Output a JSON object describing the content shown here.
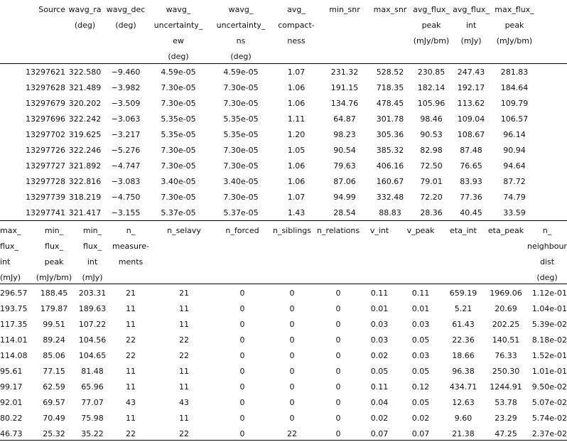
{
  "table1": {
    "headers": [
      [
        "Source"
      ],
      [
        "wavg_ra",
        "(deg)"
      ],
      [
        "wavg_dec",
        "(deg)"
      ],
      [
        "wavg_",
        "uncertainty_",
        "ew",
        "(deg)"
      ],
      [
        "wavg_",
        "uncertainty_",
        "ns",
        "(deg)"
      ],
      [
        "avg_",
        "compact-",
        "ness"
      ],
      [
        "min_snr"
      ],
      [
        "max_snr"
      ],
      [
        "avg_flux_",
        "peak",
        "(mJy/bm)"
      ],
      [
        "avg_flux_",
        "int",
        "(mJy)"
      ],
      [
        "max_flux_",
        "peak",
        "(mJy/bm)"
      ]
    ],
    "rows": [
      [
        "13297621",
        "322.580",
        "−9.460",
        "4.59e-05",
        "4.59e-05",
        "1.07",
        "231.32",
        "528.52",
        "230.85",
        "247.43",
        "281.83"
      ],
      [
        "13297628",
        "321.489",
        "−3.982",
        "7.30e-05",
        "7.30e-05",
        "1.06",
        "191.15",
        "718.35",
        "182.14",
        "192.17",
        "184.64"
      ],
      [
        "13297679",
        "320.202",
        "−3.509",
        "7.30e-05",
        "7.30e-05",
        "1.06",
        "134.76",
        "478.45",
        "105.96",
        "113.62",
        "109.79"
      ],
      [
        "13297696",
        "322.242",
        "−3.063",
        "5.35e-05",
        "5.35e-05",
        "1.11",
        "64.87",
        "301.78",
        "98.46",
        "109.04",
        "106.57"
      ],
      [
        "13297702",
        "319.625",
        "−3.217",
        "5.35e-05",
        "5.35e-05",
        "1.20",
        "98.23",
        "305.36",
        "90.53",
        "108.67",
        "96.14"
      ],
      [
        "13297726",
        "322.246",
        "−5.276",
        "7.30e-05",
        "7.30e-05",
        "1.05",
        "90.54",
        "385.32",
        "82.98",
        "87.48",
        "90.94"
      ],
      [
        "13297727",
        "321.892",
        "−4.747",
        "7.30e-05",
        "7.30e-05",
        "1.06",
        "79.63",
        "406.16",
        "72.50",
        "76.65",
        "94.64"
      ],
      [
        "13297728",
        "322.816",
        "−3.083",
        "3.40e-05",
        "3.40e-05",
        "1.06",
        "87.06",
        "160.67",
        "79.01",
        "83.93",
        "87.72"
      ],
      [
        "13297739",
        "318.219",
        "−4.750",
        "7.30e-05",
        "7.30e-05",
        "1.07",
        "94.99",
        "332.48",
        "72.20",
        "77.36",
        "74.79"
      ],
      [
        "13297741",
        "321.417",
        "−3.155",
        "5.37e-05",
        "5.37e-05",
        "1.43",
        "28.54",
        "88.83",
        "28.36",
        "40.45",
        "33.59"
      ]
    ]
  },
  "table2": {
    "headers": [
      [
        "max_",
        "flux_",
        "int",
        "(mJy)"
      ],
      [
        "min_",
        "flux_",
        "peak",
        "(mJy/bm)"
      ],
      [
        "min_",
        "flux_",
        "int",
        "(mJy)"
      ],
      [
        "n_",
        "measure-",
        "ments"
      ],
      [
        "n_selavy"
      ],
      [
        "n_forced"
      ],
      [
        "n_siblings"
      ],
      [
        "n_relations"
      ],
      [
        "v_int"
      ],
      [
        "v_peak"
      ],
      [
        "eta_int"
      ],
      [
        "eta_peak"
      ],
      [
        "n_",
        "neighbour_",
        "dist",
        "(deg)"
      ]
    ],
    "rows": [
      [
        "296.57",
        "188.45",
        "203.31",
        "21",
        "21",
        "0",
        "0",
        "0",
        "0.11",
        "0.11",
        "659.19",
        "1969.06",
        "1.12e-01"
      ],
      [
        "193.75",
        "179.87",
        "189.63",
        "11",
        "11",
        "0",
        "0",
        "0",
        "0.01",
        "0.01",
        "5.21",
        "20.69",
        "1.04e-01"
      ],
      [
        "117.35",
        "99.51",
        "107.22",
        "11",
        "11",
        "0",
        "0",
        "0",
        "0.03",
        "0.03",
        "61.43",
        "202.25",
        "5.39e-02"
      ],
      [
        "114.01",
        "89.24",
        "104.56",
        "22",
        "22",
        "0",
        "0",
        "0",
        "0.03",
        "0.05",
        "22.36",
        "140.51",
        "8.18e-02"
      ],
      [
        "114.08",
        "85.06",
        "104.65",
        "22",
        "22",
        "0",
        "0",
        "0",
        "0.02",
        "0.03",
        "18.66",
        "76.33",
        "1.52e-01"
      ],
      [
        "95.61",
        "77.15",
        "81.48",
        "11",
        "11",
        "0",
        "0",
        "0",
        "0.05",
        "0.05",
        "96.38",
        "250.30",
        "1.01e-01"
      ],
      [
        "99.17",
        "62.59",
        "65.96",
        "11",
        "11",
        "0",
        "0",
        "0",
        "0.11",
        "0.12",
        "434.71",
        "1244.91",
        "9.50e-02"
      ],
      [
        "92.01",
        "69.57",
        "77.07",
        "43",
        "43",
        "0",
        "0",
        "0",
        "0.04",
        "0.05",
        "12.63",
        "53.78",
        "5.07e-02"
      ],
      [
        "80.22",
        "70.49",
        "75.98",
        "11",
        "11",
        "0",
        "0",
        "0",
        "0.02",
        "0.02",
        "9.60",
        "23.29",
        "5.74e-02"
      ],
      [
        "46.73",
        "25.32",
        "35.22",
        "22",
        "22",
        "0",
        "22",
        "0",
        "0.07",
        "0.07",
        "21.38",
        "47.25",
        "2.37e-02"
      ]
    ]
  }
}
